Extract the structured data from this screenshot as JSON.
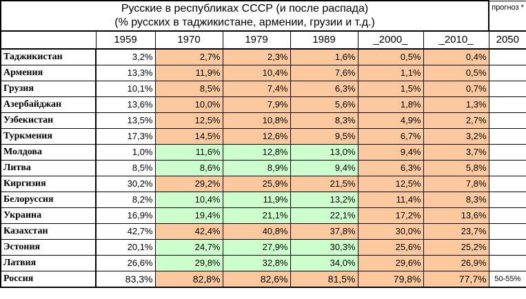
{
  "title_line1": "Русские в республиках СССР (и после распада)",
  "title_line2": "(% русских в таджикистане, армении, грузии и т.д.)",
  "forecast_label": "прогноз *",
  "years": [
    "1959",
    "1970",
    "1979",
    "1989",
    "_2000_",
    "_2010_",
    "2050"
  ],
  "colors": {
    "increase_green": "#ccffcc",
    "decrease_orange": "#fbc99d",
    "neutral_white": "#ffffff"
  },
  "rows": [
    {
      "country": "Таджикистан",
      "values": [
        "3,2%",
        "2,7%",
        "2,3%",
        "1,6%",
        "0,5%",
        "0,4%"
      ],
      "fills": [
        "white",
        "orange",
        "orange",
        "orange",
        "orange",
        "orange"
      ],
      "forecast": ""
    },
    {
      "country": "Армения",
      "values": [
        "13,3%",
        "11,9%",
        "10,4%",
        "7,6%",
        "1,1%",
        "0,5%"
      ],
      "fills": [
        "white",
        "orange",
        "orange",
        "orange",
        "orange",
        "orange"
      ],
      "forecast": ""
    },
    {
      "country": "Грузия",
      "values": [
        "10,1%",
        "8,5%",
        "7,4%",
        "6,3%",
        "1,5%",
        "0,7%"
      ],
      "fills": [
        "white",
        "orange",
        "orange",
        "orange",
        "orange",
        "orange"
      ],
      "forecast": ""
    },
    {
      "country": "Азербайджан",
      "values": [
        "13,6%",
        "10,0%",
        "7,9%",
        "5,6%",
        "1,8%",
        "1,3%"
      ],
      "fills": [
        "white",
        "orange",
        "orange",
        "orange",
        "orange",
        "orange"
      ],
      "forecast": ""
    },
    {
      "country": "Узбекистан",
      "values": [
        "13,5%",
        "12,5%",
        "10,8%",
        "8,3%",
        "4,9%",
        "2,7%"
      ],
      "fills": [
        "white",
        "orange",
        "orange",
        "orange",
        "orange",
        "orange"
      ],
      "forecast": ""
    },
    {
      "country": "Туркмения",
      "values": [
        "17,3%",
        "14,5%",
        "12,6%",
        "9,5%",
        "6,7%",
        "3,2%"
      ],
      "fills": [
        "white",
        "orange",
        "orange",
        "orange",
        "orange",
        "orange"
      ],
      "forecast": ""
    },
    {
      "country": "Молдова",
      "values": [
        "1,0%",
        "11,6%",
        "12,8%",
        "13,0%",
        "9,4%",
        "3,7%"
      ],
      "fills": [
        "white",
        "green",
        "green",
        "green",
        "orange",
        "orange"
      ],
      "forecast": ""
    },
    {
      "country": "Литва",
      "values": [
        "8,5%",
        "8,6%",
        "8,9%",
        "9,4%",
        "6,3%",
        "5,8%"
      ],
      "fills": [
        "white",
        "green",
        "green",
        "green",
        "orange",
        "orange"
      ],
      "forecast": ""
    },
    {
      "country": "Киргизия",
      "values": [
        "30,2%",
        "29,2%",
        "25,9%",
        "21,5%",
        "12,5%",
        "7,8%"
      ],
      "fills": [
        "white",
        "orange",
        "orange",
        "orange",
        "orange",
        "orange"
      ],
      "forecast": ""
    },
    {
      "country": "Белоруссия",
      "values": [
        "8,2%",
        "10,4%",
        "11,9%",
        "13,2%",
        "11,4%",
        "8,3%"
      ],
      "fills": [
        "white",
        "green",
        "green",
        "green",
        "orange",
        "orange"
      ],
      "forecast": ""
    },
    {
      "country": "Украина",
      "values": [
        "16,9%",
        "19,4%",
        "21,1%",
        "22,1%",
        "17,2%",
        "13,6%"
      ],
      "fills": [
        "white",
        "green",
        "green",
        "green",
        "orange",
        "orange"
      ],
      "forecast": ""
    },
    {
      "country": "Казахстан",
      "values": [
        "42,7%",
        "42,4%",
        "40,8%",
        "37,8%",
        "30,0%",
        "23,7%"
      ],
      "fills": [
        "white",
        "orange",
        "orange",
        "orange",
        "orange",
        "orange"
      ],
      "forecast": ""
    },
    {
      "country": "Эстония",
      "values": [
        "20,1%",
        "24,7%",
        "27,9%",
        "30,3%",
        "25,6%",
        "25,2%"
      ],
      "fills": [
        "white",
        "green",
        "green",
        "green",
        "orange",
        "orange"
      ],
      "forecast": ""
    },
    {
      "country": "Латвия",
      "values": [
        "26,6%",
        "29,8%",
        "32,8%",
        "34,0%",
        "29,6%",
        "26,9%"
      ],
      "fills": [
        "white",
        "green",
        "green",
        "green",
        "orange",
        "orange"
      ],
      "forecast": ""
    },
    {
      "country": "Россия",
      "values": [
        "83,3%",
        "82,8%",
        "82,6%",
        "81,5%",
        "79,8%",
        "77,7%"
      ],
      "fills": [
        "white",
        "orange",
        "orange",
        "orange",
        "orange",
        "orange"
      ],
      "forecast": "50-55%"
    }
  ]
}
